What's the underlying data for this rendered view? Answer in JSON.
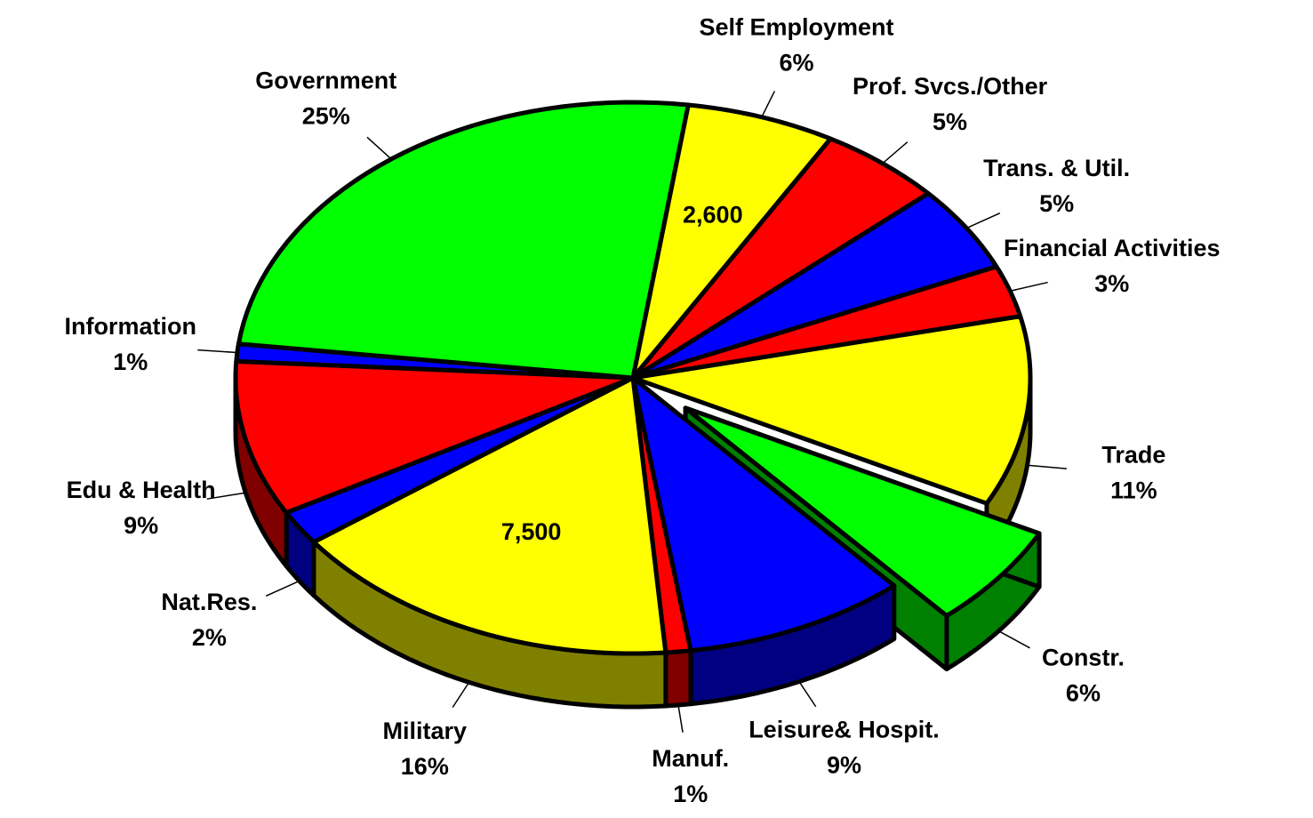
{
  "chart_data": {
    "type": "pie",
    "categories": [
      "Self Employment",
      "Prof. Svcs./Other",
      "Trans. & Util.",
      "Financial Activities",
      "Trade",
      "Constr.",
      "Leisure& Hospit.",
      "Manuf.",
      "Military",
      "Nat.Res.",
      "Edu & Health",
      "Information",
      "Government"
    ],
    "values": [
      6,
      5,
      5,
      3,
      11,
      6,
      9,
      1,
      16,
      2,
      9,
      1,
      25
    ],
    "value_labels": [
      "6%",
      "5%",
      "5%",
      "3%",
      "11%",
      "6%",
      "9%",
      "1%",
      "16%",
      "2%",
      "9%",
      "1%",
      "25%"
    ],
    "colors": [
      "#ffff00",
      "#ff0000",
      "#0000ff",
      "#ff0000",
      "#ffff00",
      "#00ff00",
      "#0000ff",
      "#ff0000",
      "#ffff00",
      "#0000ff",
      "#ff0000",
      "#0000ff",
      "#00ff00"
    ],
    "exploded": [
      "Constr."
    ],
    "annotations": [
      {
        "category": "Self Employment",
        "label": "2,600",
        "value": 2600
      },
      {
        "category": "Military",
        "label": "7,500",
        "value": 7500
      }
    ]
  }
}
